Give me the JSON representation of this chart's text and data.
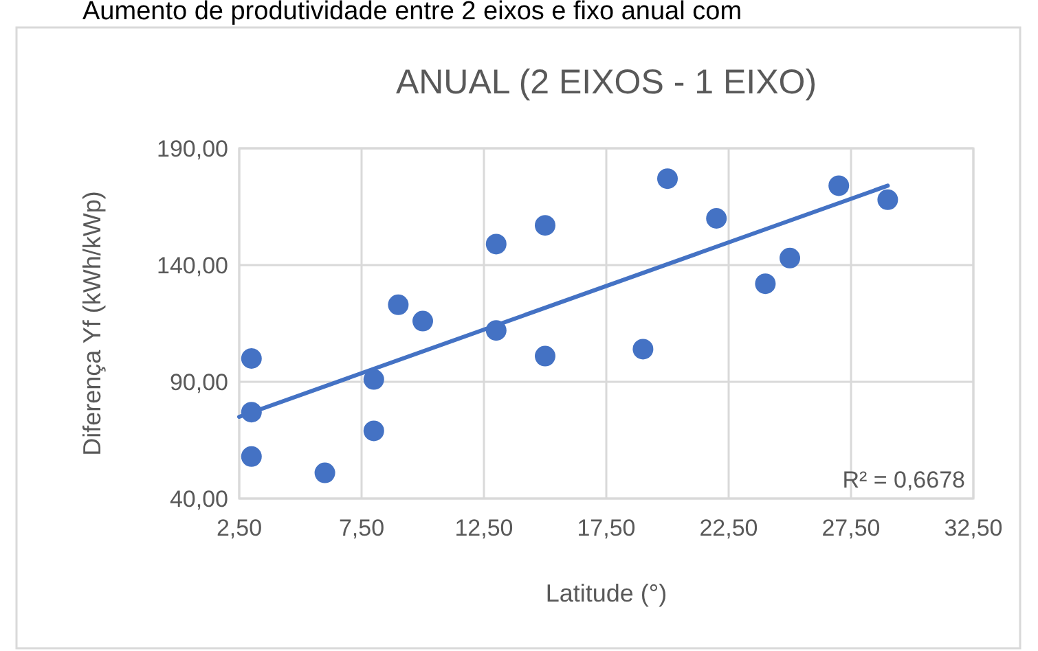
{
  "chart_data": {
    "type": "scatter",
    "title": "ANUAL (2 EIXOS - 1 EIXO)",
    "xlabel": "Latitude (°)",
    "ylabel": "Diferença Yf (kWh/kWp)",
    "annotations": [
      "Aumento de produtividade entre 2 eixos e fixo anual com",
      "R² = 0,6678"
    ],
    "series": [
      {
        "color": "#4472c4",
        "marker": "circle",
        "x": [
          3,
          3,
          3,
          6,
          8,
          8,
          9,
          10,
          13,
          13,
          15,
          15,
          20,
          19,
          22,
          24,
          25,
          27,
          29
        ],
        "values": [
          100,
          77,
          58,
          51,
          91,
          69,
          123,
          116,
          149,
          112,
          157,
          101,
          177,
          104,
          160,
          132,
          143,
          174,
          168
        ]
      },
      {
        "type": "line",
        "color": "#4472c4",
        "marker": "none",
        "x": [
          2.5,
          29
        ],
        "values": [
          75,
          174
        ]
      }
    ],
    "grid": true,
    "xlim": [
      2.5,
      32.5
    ],
    "xticks": [
      {
        "value": 2.5,
        "label": "2,50"
      },
      {
        "value": 7.5,
        "label": "7,50"
      },
      {
        "value": 12.5,
        "label": "12,50"
      },
      {
        "value": 17.5,
        "label": "17,50"
      },
      {
        "value": 22.5,
        "label": "22,50"
      },
      {
        "value": 27.5,
        "label": "27,50"
      },
      {
        "value": 32.5,
        "label": "32,50"
      }
    ],
    "ylim": [
      40,
      190
    ],
    "yticks": [
      {
        "value": 40,
        "label": "40,00"
      },
      {
        "value": 90,
        "label": "90,00"
      },
      {
        "value": 140,
        "label": "140,00"
      },
      {
        "value": 190,
        "label": "190,00"
      }
    ]
  }
}
